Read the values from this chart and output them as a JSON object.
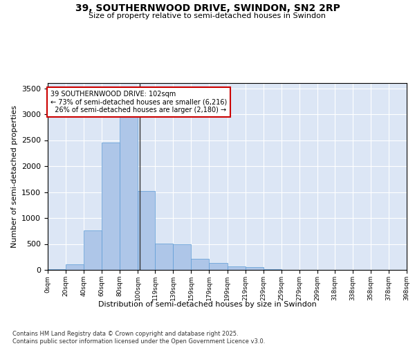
{
  "title": "39, SOUTHERNWOOD DRIVE, SWINDON, SN2 2RP",
  "subtitle": "Size of property relative to semi-detached houses in Swindon",
  "xlabel": "Distribution of semi-detached houses by size in Swindon",
  "ylabel": "Number of semi-detached properties",
  "property_size": 102,
  "property_label": "39 SOUTHERNWOOD DRIVE: 102sqm",
  "pct_smaller": 73,
  "count_smaller": 6216,
  "pct_larger": 26,
  "count_larger": 2180,
  "bin_edges": [
    0,
    20,
    40,
    60,
    80,
    100,
    119,
    139,
    159,
    179,
    199,
    219,
    239,
    259,
    279,
    299,
    318,
    338,
    358,
    378,
    398
  ],
  "bar_heights": [
    20,
    110,
    760,
    2460,
    3280,
    1520,
    510,
    500,
    210,
    130,
    70,
    50,
    20,
    5,
    5,
    2,
    2,
    1,
    1,
    1
  ],
  "bar_color": "#aec6e8",
  "bar_edge_color": "#5b9bd5",
  "highlight_line_color": "#333333",
  "annotation_box_color": "#ffffff",
  "annotation_border_color": "#cc0000",
  "background_color": "#dce6f5",
  "ylim": [
    0,
    3600
  ],
  "yticks": [
    0,
    500,
    1000,
    1500,
    2000,
    2500,
    3000,
    3500
  ],
  "footer": "Contains HM Land Registry data © Crown copyright and database right 2025.\nContains public sector information licensed under the Open Government Licence v3.0.",
  "tick_labels": [
    "0sqm",
    "20sqm",
    "40sqm",
    "60sqm",
    "80sqm",
    "100sqm",
    "119sqm",
    "139sqm",
    "159sqm",
    "179sqm",
    "199sqm",
    "219sqm",
    "239sqm",
    "259sqm",
    "279sqm",
    "299sqm",
    "318sqm",
    "338sqm",
    "358sqm",
    "378sqm",
    "398sqm"
  ]
}
